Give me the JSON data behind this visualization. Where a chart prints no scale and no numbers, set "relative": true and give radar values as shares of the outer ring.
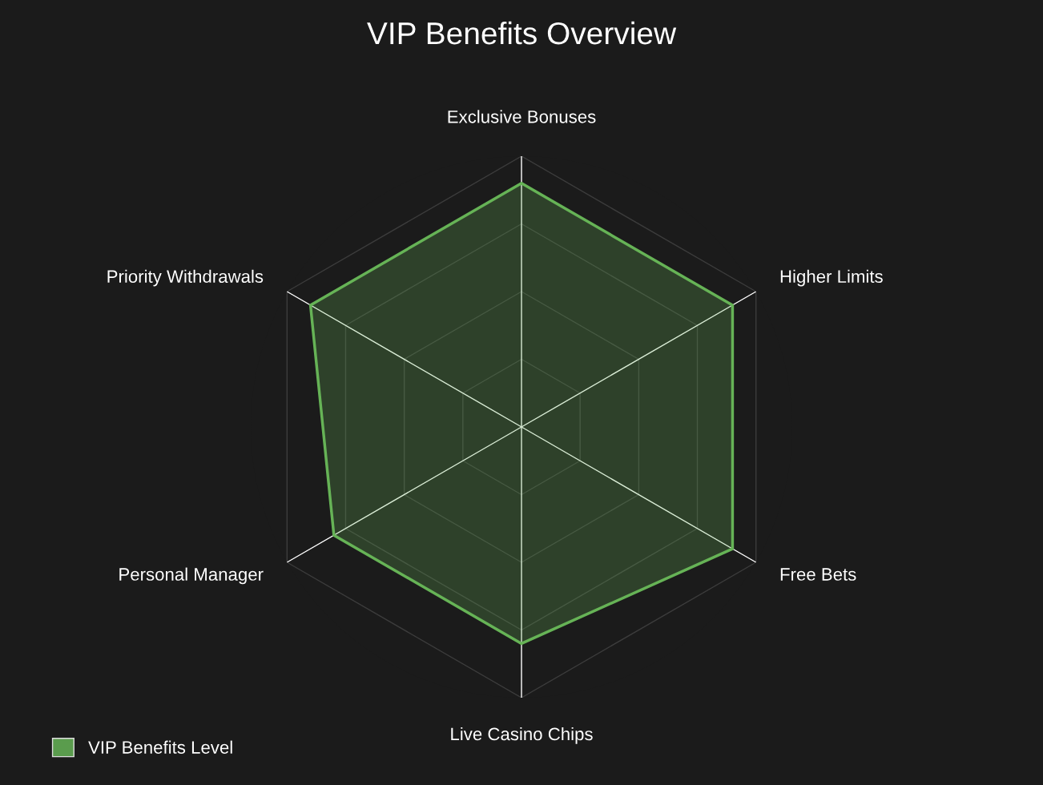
{
  "chart_data": {
    "type": "radar",
    "title": "VIP Benefits Overview",
    "relative": true,
    "categories": [
      "Exclusive Bonuses",
      "Higher Limits",
      "Free Bets",
      "Live Casino Chips",
      "Personal Manager",
      "Priority Withdrawals"
    ],
    "series": [
      {
        "name": "VIP Benefits Level",
        "color": "#66b356",
        "values": [
          0.9,
          0.9,
          0.9,
          0.8,
          0.8,
          0.9
        ]
      }
    ],
    "grid": true,
    "legend": "bottom left"
  }
}
